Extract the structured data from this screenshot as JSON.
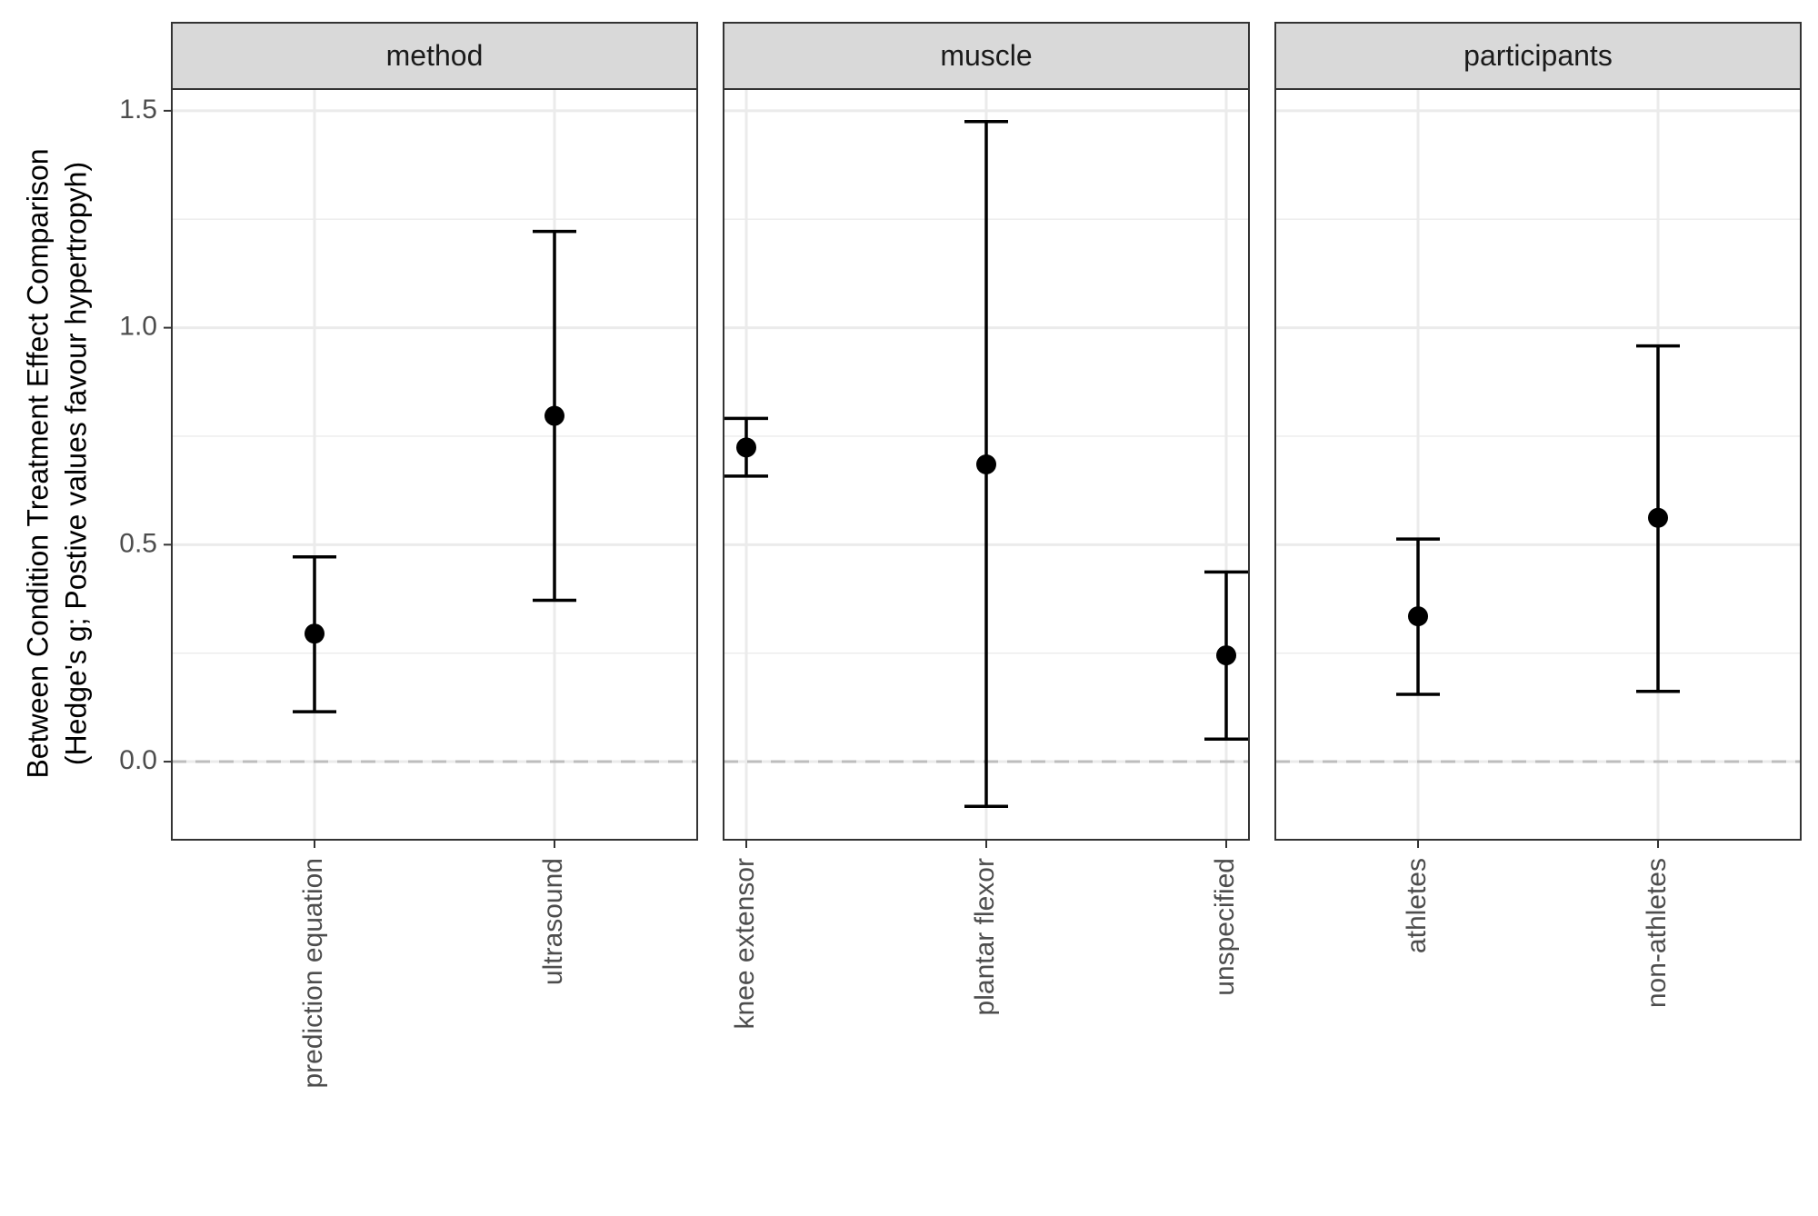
{
  "chart_data": {
    "type": "scatter",
    "ylabel_lines": [
      "Between Condition Treatment Effect Comparison",
      "(Hedge's g; Postive values favour hypertropyh)"
    ],
    "xlabel": "",
    "ylim": [
      -0.18,
      1.55
    ],
    "y_ticks": [
      "0.0",
      "0.5",
      "1.0",
      "1.5"
    ],
    "y_tick_values": [
      0.0,
      0.5,
      1.0,
      1.5
    ],
    "y_minor_values": [
      0.25,
      0.75,
      1.25
    ],
    "reference_line": 0.0,
    "grid": true,
    "style": {
      "panel_border": "#333333",
      "strip_fill": "#d9d9d9",
      "grid_color": "#ebebeb",
      "ref_line_color": "#bdbdbd",
      "point_color": "#000000"
    },
    "facets": [
      {
        "label": "method",
        "categories": [
          "prediction equation",
          "ultrasound"
        ],
        "estimates": [
          0.295,
          0.797
        ],
        "lower": [
          0.115,
          0.372
        ],
        "upper": [
          0.472,
          1.222
        ]
      },
      {
        "label": "muscle",
        "categories": [
          "knee extensor",
          "plantar flexor",
          "unspecified"
        ],
        "estimates": [
          0.724,
          0.685,
          0.245
        ],
        "lower": [
          0.658,
          -0.103,
          0.052
        ],
        "upper": [
          0.791,
          1.475,
          0.437
        ]
      },
      {
        "label": "participants",
        "categories": [
          "athletes",
          "non-athletes"
        ],
        "estimates": [
          0.335,
          0.562
        ],
        "lower": [
          0.155,
          0.162
        ],
        "upper": [
          0.513,
          0.958
        ]
      }
    ]
  }
}
